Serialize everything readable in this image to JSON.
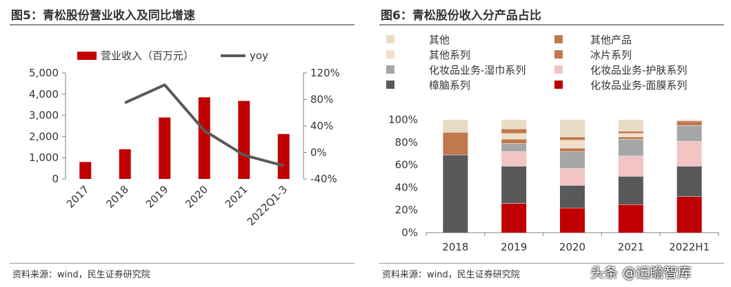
{
  "left": {
    "title": "图5：青松股份营业收入及同比增速",
    "source": "资料来源：wind，民生证券研究院"
  },
  "right": {
    "title": "图6：青松股份收入分产品占比",
    "source": "资料来源：wind，民生证券研究院"
  },
  "watermark": "头条 @远瞻智库",
  "colors": {
    "bar_red": "#c00000",
    "line_gray": "#595959",
    "axis": "#7f7f7f"
  },
  "chart_data": [
    {
      "id": "revenue",
      "type": "bar+line",
      "title": "图5：青松股份营业收入及同比增速",
      "categories": [
        "2017",
        "2018",
        "2019",
        "2020",
        "2021",
        "2022Q1-3"
      ],
      "series": [
        {
          "name": "营业收入（百万元）",
          "type": "bar",
          "axis": "left",
          "color": "#c00000",
          "values": [
            800,
            1400,
            2900,
            3850,
            3680,
            2120
          ]
        },
        {
          "name": "yoy",
          "type": "line",
          "axis": "right",
          "color": "#595959",
          "values": [
            null,
            0.75,
            1.02,
            0.33,
            -0.04,
            -0.2
          ]
        }
      ],
      "yleft": {
        "min": 0,
        "max": 5000,
        "ticks": [
          0,
          1000,
          2000,
          3000,
          4000,
          5000
        ],
        "tick_labels": [
          "0",
          "1,000",
          "2,000",
          "3,000",
          "4,000",
          "5,000"
        ]
      },
      "yright": {
        "min": -0.4,
        "max": 1.2,
        "ticks": [
          -0.4,
          0,
          0.4,
          0.8,
          1.2
        ],
        "tick_labels": [
          "-40%",
          "0%",
          "40%",
          "80%",
          "120%"
        ]
      },
      "legend_position": "top"
    },
    {
      "id": "mix",
      "type": "stacked-bar",
      "title": "图6：青松股份收入分产品占比",
      "categories": [
        "2018",
        "2019",
        "2020",
        "2021",
        "2022H1"
      ],
      "series": [
        {
          "name": "化妆品业务-面膜系列",
          "color": "#c00000",
          "values": [
            0,
            0.26,
            0.22,
            0.25,
            0.32
          ]
        },
        {
          "name": "樟脑系列",
          "color": "#595959",
          "values": [
            0.69,
            0.33,
            0.2,
            0.25,
            0.27
          ]
        },
        {
          "name": "化妆品业务-护肤系列",
          "color": "#f2c4c4",
          "values": [
            0,
            0.13,
            0.15,
            0.18,
            0.22
          ]
        },
        {
          "name": "化妆品业务-湿巾系列",
          "color": "#a6a6a6",
          "values": [
            0,
            0.07,
            0.15,
            0.15,
            0.14
          ]
        },
        {
          "name": "冰片系列",
          "color": "#c0784f",
          "values": [
            0,
            0.04,
            0.03,
            0.02,
            0
          ]
        },
        {
          "name": "其他系列",
          "color": "#f1e0c9",
          "values": [
            0,
            0.05,
            0.07,
            0.03,
            0
          ]
        },
        {
          "name": "其他产品",
          "color": "#c0784f",
          "values": [
            0.2,
            0.04,
            0.03,
            0.02,
            0.04
          ]
        },
        {
          "name": "其他",
          "color": "#eadcc4",
          "values": [
            0.11,
            0.08,
            0.15,
            0.1,
            0.01
          ]
        }
      ],
      "legend_order": [
        "其他",
        "其他产品",
        "其他系列",
        "冰片系列",
        "化妆品业务-湿巾系列",
        "化妆品业务-护肤系列",
        "樟脑系列",
        "化妆品业务-面膜系列"
      ],
      "y": {
        "min": 0,
        "max": 1,
        "ticks": [
          0,
          0.2,
          0.4,
          0.6,
          0.8,
          1.0
        ],
        "tick_labels": [
          "0%",
          "20%",
          "40%",
          "60%",
          "80%",
          "100%"
        ]
      },
      "legend_position": "top"
    }
  ]
}
